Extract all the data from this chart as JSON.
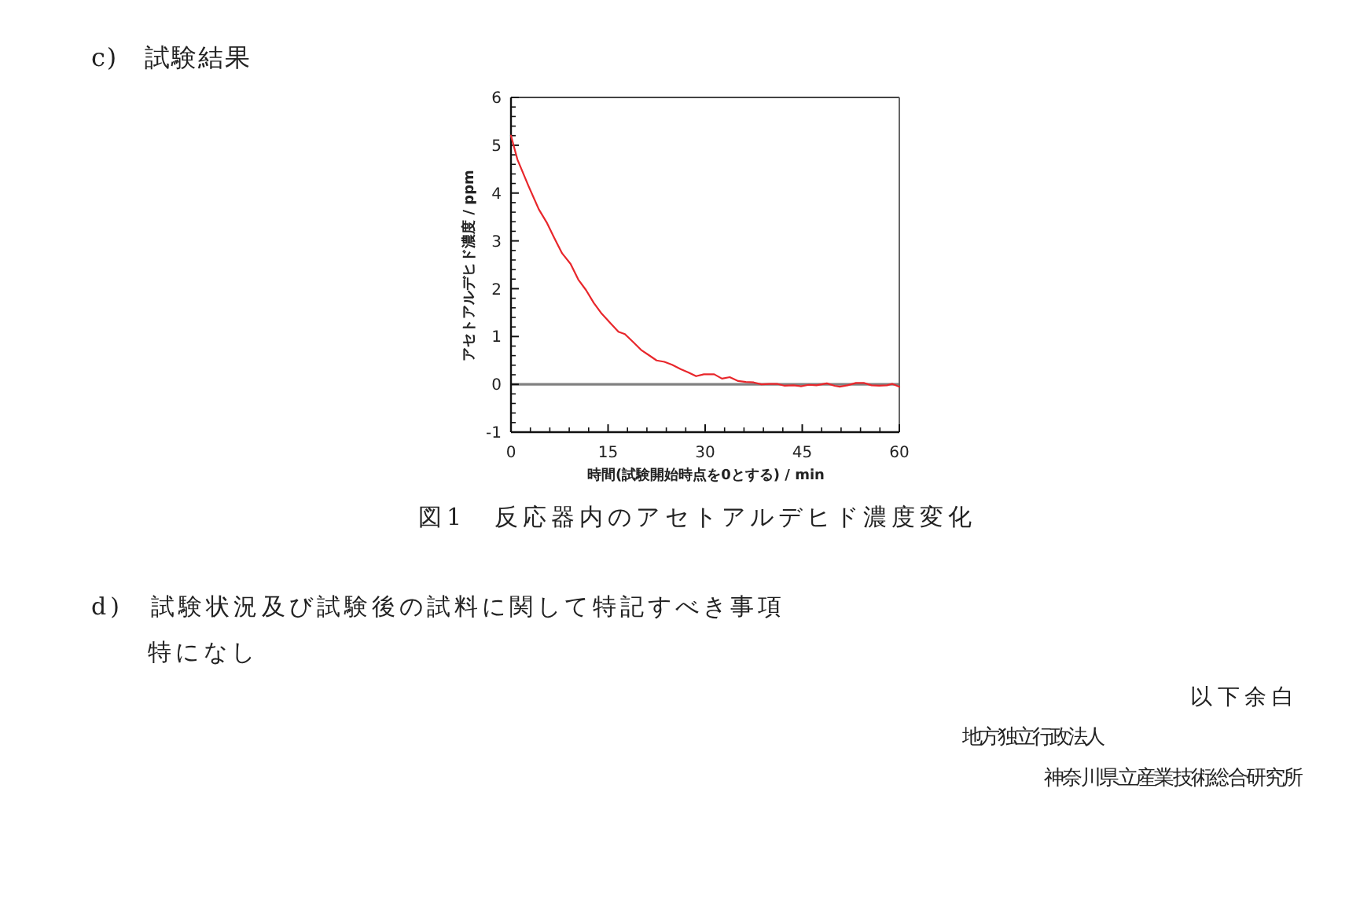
{
  "chart_data": {
    "type": "line",
    "title": "c)　試験結果",
    "xlabel": "時間(試験開始時点を0とする) / min",
    "ylabel": "アセトアルデヒド濃度 / ppm",
    "x": [
      0,
      1.0,
      2.7,
      4.3,
      5.5,
      6.7,
      7.9,
      9.2,
      10.4,
      11.6,
      12.8,
      14.0,
      15.5,
      16.6,
      17.6,
      18.9,
      20.1,
      21.3,
      22.5,
      23.7,
      24.9,
      26.2,
      27.4,
      28.6,
      29.8,
      31.4,
      32.6,
      33.8,
      35.1,
      36.3,
      37.5,
      38.7,
      39.9,
      41.1,
      42.3,
      43.6,
      44.8,
      46.0,
      47.2,
      48.8,
      50.0,
      50.8,
      52.0,
      53.3,
      54.5,
      55.7,
      56.9,
      58.1,
      58.9,
      60
    ],
    "values": [
      5.2,
      4.7,
      4.15,
      3.66,
      3.39,
      3.06,
      2.74,
      2.52,
      2.19,
      1.97,
      1.7,
      1.48,
      1.26,
      1.1,
      1.05,
      0.88,
      0.72,
      0.61,
      0.5,
      0.47,
      0.41,
      0.32,
      0.25,
      0.17,
      0.21,
      0.21,
      0.12,
      0.15,
      0.07,
      0.05,
      0.04,
      0.0,
      0.01,
      0.01,
      -0.03,
      -0.02,
      -0.04,
      -0.01,
      -0.02,
      0.02,
      -0.03,
      -0.05,
      -0.02,
      0.03,
      0.03,
      -0.02,
      -0.03,
      -0.02,
      0.01,
      -0.05
    ],
    "color": "#e8262b",
    "xlim": [
      0,
      60
    ],
    "ylim": [
      -1,
      6
    ],
    "xticks": [
      0,
      15,
      30,
      45,
      60
    ],
    "yticks": [
      -1,
      0,
      1,
      2,
      3,
      4,
      5,
      6
    ],
    "ref_lines": [
      {
        "axis": "y",
        "value": 0,
        "color": "#808080"
      }
    ],
    "annotations": [
      "図1　反応器内のアセトアルデヒド濃度変化",
      "d)　試験状況及び試験後の試料に関して特記すべき事項",
      "特になし",
      "以下余白",
      "地方独立行政法人",
      "神奈川県立産業技術総合研究所"
    ]
  }
}
